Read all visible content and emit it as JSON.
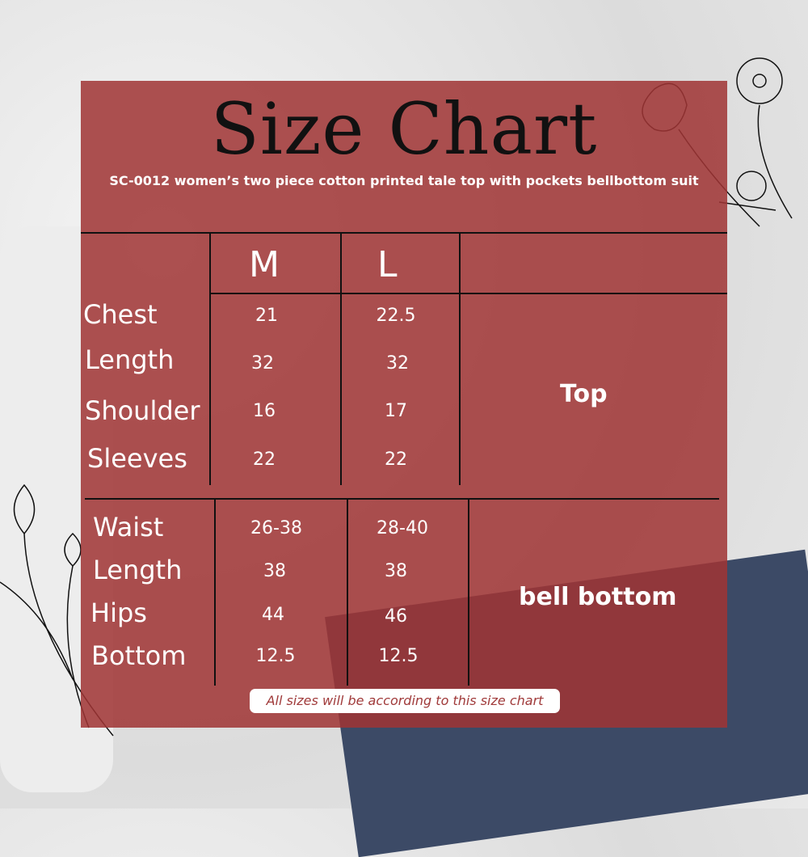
{
  "title": "Size Chart",
  "subtitle": "SC-0012 women’s two piece cotton printed tale top with pockets bellbottom suit",
  "sizes": [
    "M",
    "L"
  ],
  "top": {
    "group_label": "Top",
    "rows": [
      {
        "label": "Chest",
        "M": "21",
        "L": "22.5"
      },
      {
        "label": "Length",
        "M": "32",
        "L": "32"
      },
      {
        "label": "Shoulder",
        "M": "16",
        "L": "17"
      },
      {
        "label": "Sleeves",
        "M": "22",
        "L": "22"
      }
    ]
  },
  "bottom": {
    "group_label": "bell bottom",
    "rows": [
      {
        "label": "Waist",
        "M": "26-38",
        "L": "28-40"
      },
      {
        "label": "Length",
        "M": "38",
        "L": "38"
      },
      {
        "label": "Hips",
        "M": "44",
        "L": "46"
      },
      {
        "label": "Bottom",
        "M": "12.5",
        "L": "12.5"
      }
    ]
  },
  "note": "All sizes will be according to this size chart",
  "colors": {
    "panel": "#a03434",
    "text": "#ffffff",
    "title": "#111111"
  }
}
